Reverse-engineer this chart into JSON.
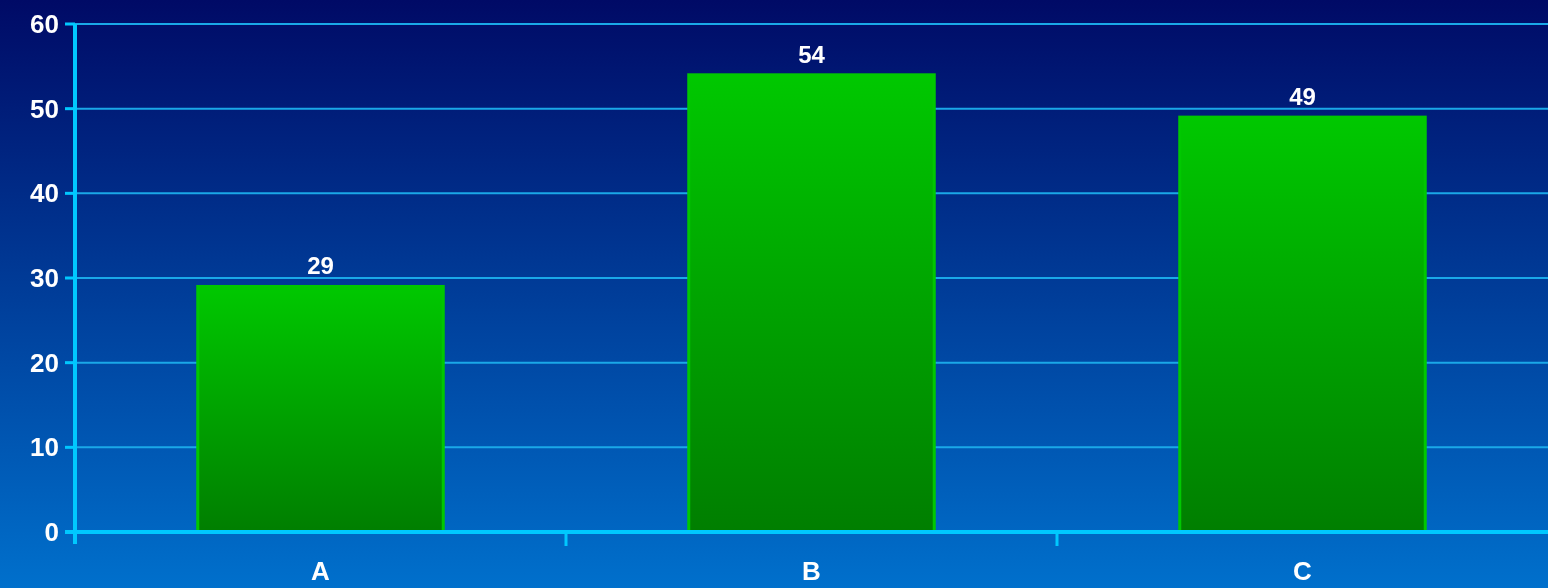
{
  "chart_data": {
    "type": "bar",
    "categories": [
      "A",
      "B",
      "C"
    ],
    "values": [
      29,
      54,
      49
    ],
    "color": "#00c800",
    "ylim": [
      0,
      60
    ],
    "yticks": [
      0,
      10,
      20,
      30,
      40,
      50,
      60
    ],
    "grid": "y",
    "data_labels": true
  }
}
